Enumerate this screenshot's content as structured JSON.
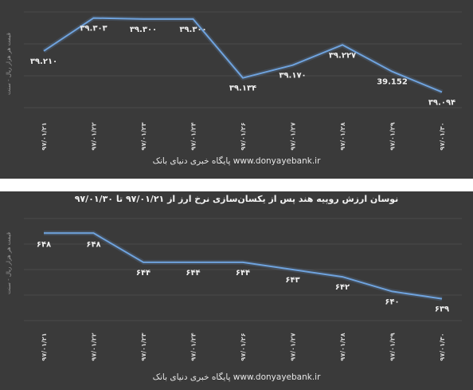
{
  "chart_data": [
    {
      "type": "line",
      "title": "",
      "ylabel": "قیمت هر هزار ریال - سنت",
      "footer": "www.donyayebank.ir پایگاه خبری دنیای بانک",
      "categories": [
        "۹۷/۰۱/۲۱",
        "۹۷/۰۱/۲۲",
        "۹۷/۰۱/۲۳",
        "۹۷/۰۱/۲۴",
        "۹۷/۰۱/۲۶",
        "۹۷/۰۱/۲۷",
        "۹۷/۰۱/۲۸",
        "۹۷/۰۱/۲۹",
        "۹۷/۰۱/۳۰"
      ],
      "values": [
        39.21,
        39.303,
        39.3,
        39.3,
        39.134,
        39.17,
        39.227,
        39.152,
        39.094
      ],
      "data_labels": [
        "۳۹.۲۱۰",
        "۳۹.۳۰۳",
        "۳۹.۳۰۰",
        "۳۹.۳۰۰",
        "۳۹.۱۳۴",
        "۳۹.۱۷۰",
        "۳۹.۲۲۷",
        "39.152",
        "۳۹.۰۹۴"
      ],
      "label_side": [
        "below",
        "below",
        "below",
        "below",
        "below",
        "below",
        "below",
        "below",
        "below"
      ],
      "ylim": [
        39.05,
        39.32
      ],
      "grid": true,
      "line_color": "#6fa3de"
    },
    {
      "type": "line",
      "title": "نوسان ارزش روپیه هند پس از یکسان‌سازی نرخ ارز از ۹۷/۰۱/۲۱ تا ۹۷/۰۱/۳۰",
      "ylabel": "قیمت هر هزار ریال - سنت",
      "footer": "www.donyayebank.ir پایگاه خبری دنیای بانک",
      "categories": [
        "۹۷/۰۱/۲۱",
        "۹۷/۰۱/۲۲",
        "۹۷/۰۱/۲۳",
        "۹۷/۰۱/۲۴",
        "۹۷/۰۱/۲۶",
        "۹۷/۰۱/۲۷",
        "۹۷/۰۱/۲۸",
        "۹۷/۰۱/۲۹",
        "۹۷/۰۱/۳۰"
      ],
      "values": [
        648,
        648,
        644,
        644,
        644,
        643,
        642,
        640,
        639
      ],
      "data_labels": [
        "۶۴۸",
        "۶۴۸",
        "۶۴۴",
        "۶۴۴",
        "۶۴۴",
        "۶۴۳",
        "۶۴۲",
        "۶۴۰",
        "۶۳۹"
      ],
      "label_side": [
        "above",
        "above",
        "below",
        "below",
        "below",
        "below",
        "below",
        "below",
        "below"
      ],
      "ylim": [
        636,
        650
      ],
      "grid": true,
      "line_color": "#6fa3de"
    }
  ]
}
